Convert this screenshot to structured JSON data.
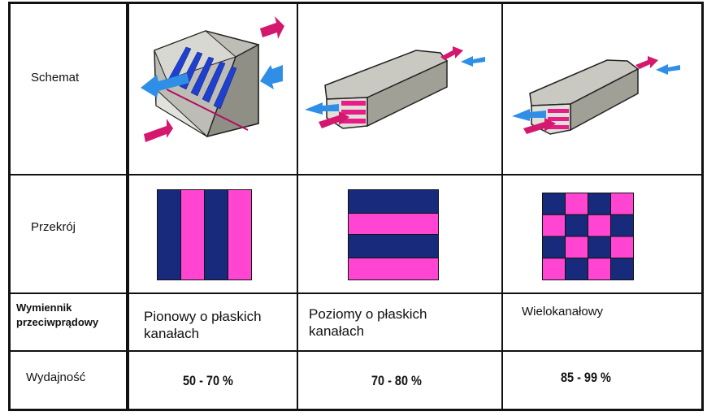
{
  "row_headers": {
    "schematic": "Schemat",
    "cross_section": "Przekrój",
    "exchanger": [
      "Wymiennik",
      "przeciwprądowy"
    ],
    "efficiency": "Wydajność"
  },
  "columns": [
    {
      "type": [
        "Pionowy o płaskich",
        "kanałach"
      ],
      "efficiency": "50 - 70 %",
      "cross_section_pattern": "vertical-stripes"
    },
    {
      "type": [
        "Poziomy o płaskich",
        "kanałach"
      ],
      "efficiency": "70 - 80 %",
      "cross_section_pattern": "horizontal-stripes"
    },
    {
      "type": [
        "Wielokanałowy"
      ],
      "efficiency": "85 - 99 %",
      "cross_section_pattern": "checkerboard"
    }
  ],
  "colors": {
    "navy": "#172a7c",
    "pink": "#ff45d2",
    "exhaust_arrow": "#d4186e",
    "supply_arrow": "#2f8fe6",
    "housing": "#b9b9b2"
  }
}
